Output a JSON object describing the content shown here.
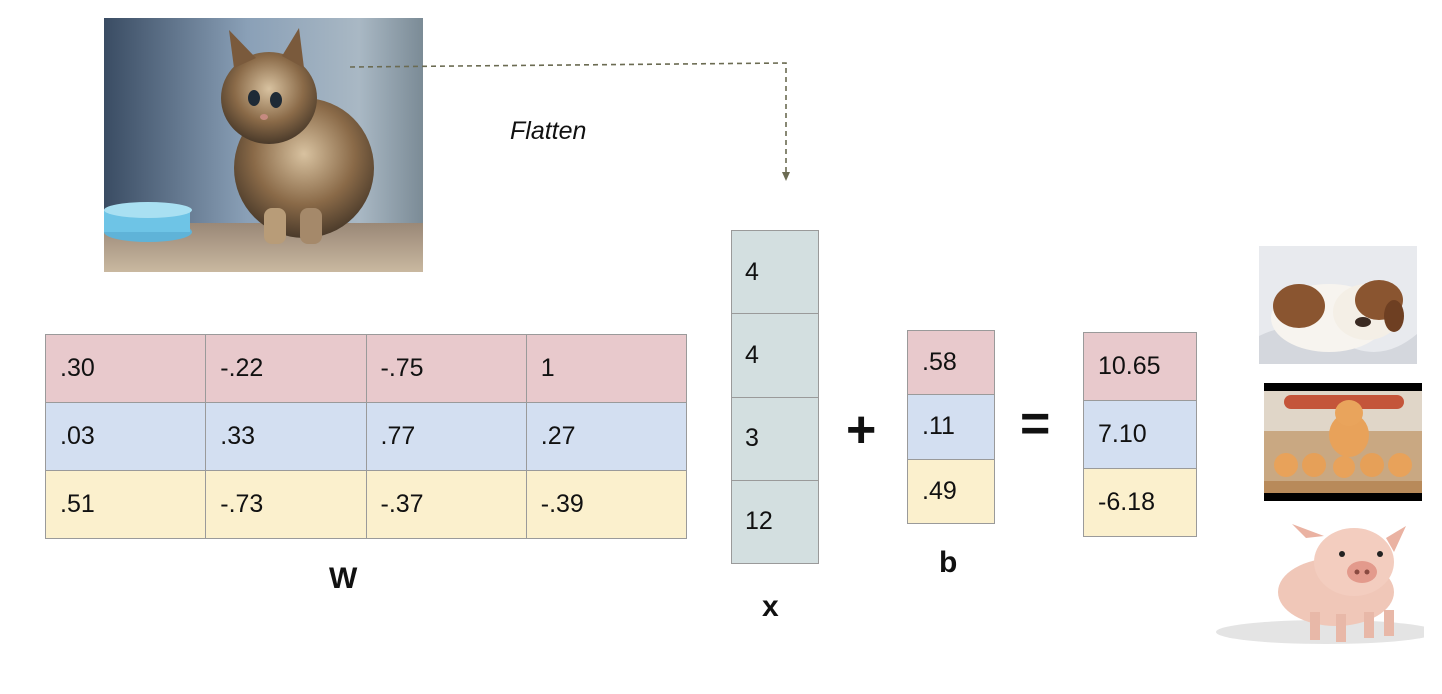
{
  "flatten_label": "Flatten",
  "weights": {
    "label": "W",
    "rows": [
      {
        "color": "#e8c9cc",
        "values": [
          ".30",
          "-.22",
          "-.75",
          "1"
        ]
      },
      {
        "color": "#d3dff1",
        "values": [
          ".03",
          ".33",
          ".77",
          ".27"
        ]
      },
      {
        "color": "#fbf0cd",
        "values": [
          ".51",
          "-.73",
          "-.37",
          "-.39"
        ]
      }
    ]
  },
  "x_vector": {
    "label": "x",
    "values": [
      "4",
      "4",
      "3",
      "12"
    ]
  },
  "plus_sign": "+",
  "bias": {
    "label": "b",
    "values": [
      ".58",
      ".11",
      ".49"
    ]
  },
  "equals_sign": "=",
  "scores": {
    "values": [
      "10.65",
      "7.10",
      "-6.18"
    ]
  },
  "images": {
    "input": "kitten photo",
    "classes": [
      "puppy photo",
      "cat with kittens photo",
      "piglet photo"
    ]
  }
}
